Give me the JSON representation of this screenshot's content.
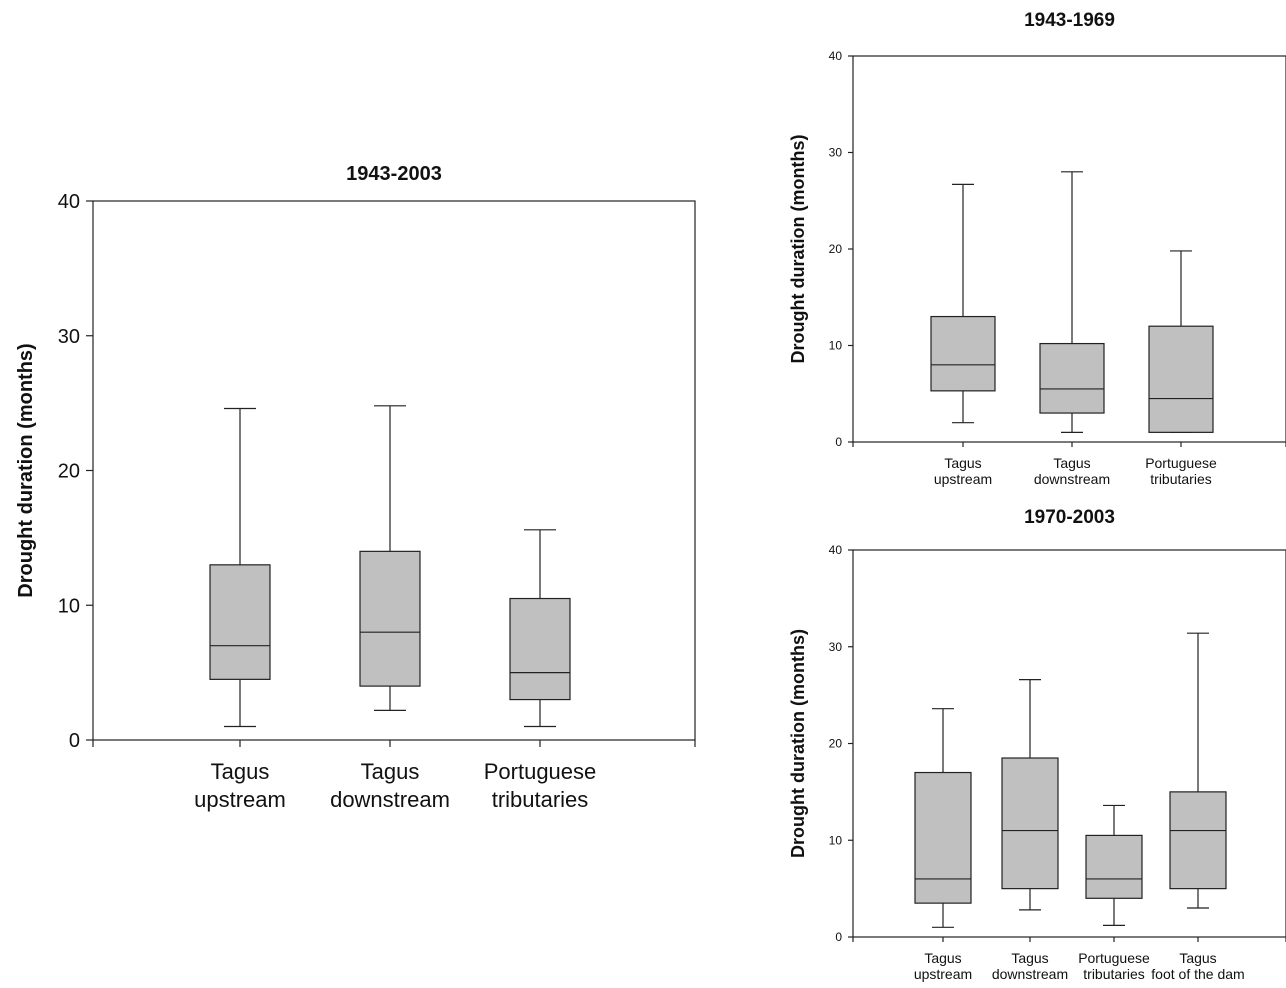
{
  "colors": {
    "box_fill": "#c0c0c0",
    "stroke": "#222222"
  },
  "chart_data": [
    {
      "type": "box",
      "title": "1943-2003",
      "ylabel": "Drought duration (months)",
      "xlabel": "",
      "ylim": [
        0,
        40
      ],
      "yticks": [
        0,
        10,
        20,
        30,
        40
      ],
      "grid": false,
      "categories": [
        [
          "Tagus",
          "upstream"
        ],
        [
          "Tagus",
          "downstream"
        ],
        [
          "Portuguese",
          "tributaries"
        ]
      ],
      "boxes": [
        {
          "min": 1,
          "q1": 4.5,
          "median": 7,
          "q3": 13,
          "max": 24.6
        },
        {
          "min": 2.2,
          "q1": 4,
          "median": 8,
          "q3": 14,
          "max": 24.8
        },
        {
          "min": 1,
          "q1": 3,
          "median": 5,
          "q3": 10.5,
          "max": 15.6
        }
      ]
    },
    {
      "type": "box",
      "title": "1943-1969",
      "ylabel": "Drought duration (months)",
      "xlabel": "",
      "ylim": [
        0,
        40
      ],
      "yticks": [
        0,
        10,
        20,
        30,
        40
      ],
      "grid": false,
      "categories": [
        [
          "Tagus",
          "upstream"
        ],
        [
          "Tagus",
          "downstream"
        ],
        [
          "Portuguese",
          "tributaries"
        ]
      ],
      "boxes": [
        {
          "min": 2,
          "q1": 5.3,
          "median": 8,
          "q3": 13,
          "max": 26.7
        },
        {
          "min": 1,
          "q1": 3,
          "median": 5.5,
          "q3": 10.2,
          "max": 28
        },
        {
          "min": 1,
          "q1": 1,
          "median": 4.5,
          "q3": 12,
          "max": 19.8
        }
      ]
    },
    {
      "type": "box",
      "title": "1970-2003",
      "ylabel": "Drought duration (months)",
      "xlabel": "",
      "ylim": [
        0,
        40
      ],
      "yticks": [
        0,
        10,
        20,
        30,
        40
      ],
      "grid": false,
      "categories": [
        [
          "Tagus",
          "upstream"
        ],
        [
          "Tagus",
          "downstream"
        ],
        [
          "Portuguese",
          "tributaries"
        ],
        [
          "Tagus",
          "foot of the dam"
        ]
      ],
      "boxes": [
        {
          "min": 1,
          "q1": 3.5,
          "median": 6,
          "q3": 17,
          "max": 23.6
        },
        {
          "min": 2.8,
          "q1": 5,
          "median": 11,
          "q3": 18.5,
          "max": 26.6
        },
        {
          "min": 1.2,
          "q1": 4,
          "median": 6,
          "q3": 10.5,
          "max": 13.6
        },
        {
          "min": 3,
          "q1": 5,
          "median": 11,
          "q3": 15,
          "max": 31.4
        }
      ]
    }
  ]
}
